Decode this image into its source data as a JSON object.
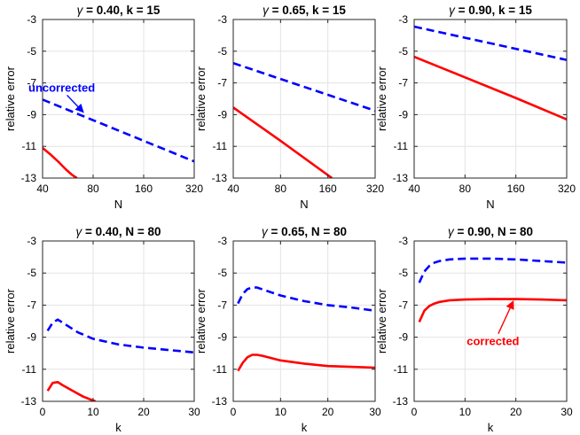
{
  "chart_data": [
    {
      "type": "line",
      "title_symbol": "γ",
      "title": " = 0.40, k = 15",
      "xlabel": "N",
      "ylabel": "relative error",
      "xscale": "log",
      "xlim": [
        40,
        320
      ],
      "ylim": [
        -13,
        -3
      ],
      "xticks": [
        40,
        80,
        160,
        320
      ],
      "xtick_labels": [
        "40",
        "80",
        "160",
        "320"
      ],
      "yticks": [
        -13,
        -11,
        -9,
        -7,
        -5,
        -3
      ],
      "ytick_labels": [
        "-13",
        "-11",
        "-9",
        "-7",
        "-5",
        "-3"
      ],
      "grid": true,
      "series": [
        {
          "color": "#0000ff",
          "dash": "dashed",
          "x": [
            40,
            80,
            160,
            320
          ],
          "y": [
            -8.05,
            -9.35,
            -10.65,
            -11.95
          ]
        },
        {
          "color": "#ff0000",
          "dash": "solid",
          "x": [
            40,
            45,
            50,
            55,
            60,
            64
          ],
          "y": [
            -11.1,
            -11.55,
            -12.0,
            -12.45,
            -12.8,
            -13.0
          ]
        }
      ],
      "annotations": [
        {
          "text": "uncorrected",
          "color": "#0000ff",
          "anchor_x": 70,
          "anchor_y": -8.85,
          "label_x": 52,
          "label_y": -7.55
        }
      ]
    },
    {
      "type": "line",
      "title_symbol": "γ",
      "title": " = 0.65, k = 15",
      "xlabel": "N",
      "ylabel": "relative error",
      "xscale": "log",
      "xlim": [
        40,
        320
      ],
      "ylim": [
        -13,
        -3
      ],
      "xticks": [
        40,
        80,
        160,
        320
      ],
      "xtick_labels": [
        "40",
        "80",
        "160",
        "320"
      ],
      "yticks": [
        -13,
        -11,
        -9,
        -7,
        -5,
        -3
      ],
      "ytick_labels": [
        "-13",
        "-11",
        "-9",
        "-7",
        "-5",
        "-3"
      ],
      "grid": true,
      "series": [
        {
          "color": "#0000ff",
          "dash": "dashed",
          "x": [
            40,
            80,
            160,
            320
          ],
          "y": [
            -5.75,
            -6.75,
            -7.75,
            -8.75
          ]
        },
        {
          "color": "#ff0000",
          "dash": "solid",
          "x": [
            40,
            80,
            170
          ],
          "y": [
            -8.55,
            -10.65,
            -13.0
          ]
        }
      ],
      "annotations": []
    },
    {
      "type": "line",
      "title_symbol": "γ",
      "title": " = 0.90, k = 15",
      "xlabel": "N",
      "ylabel": "relative error",
      "xscale": "log",
      "xlim": [
        40,
        320
      ],
      "ylim": [
        -13,
        -3
      ],
      "xticks": [
        40,
        80,
        160,
        320
      ],
      "xtick_labels": [
        "40",
        "80",
        "160",
        "320"
      ],
      "yticks": [
        -13,
        -11,
        -9,
        -7,
        -5,
        -3
      ],
      "ytick_labels": [
        "-13",
        "-11",
        "-9",
        "-7",
        "-5",
        "-3"
      ],
      "grid": true,
      "series": [
        {
          "color": "#0000ff",
          "dash": "dashed",
          "x": [
            40,
            80,
            160,
            320
          ],
          "y": [
            -3.45,
            -4.15,
            -4.85,
            -5.55
          ]
        },
        {
          "color": "#ff0000",
          "dash": "solid",
          "x": [
            40,
            80,
            160,
            320
          ],
          "y": [
            -5.35,
            -6.65,
            -7.95,
            -9.3
          ]
        }
      ],
      "annotations": []
    },
    {
      "type": "line",
      "title_symbol": "γ",
      "title": " = 0.40, N = 80",
      "xlabel": "k",
      "ylabel": "relative error",
      "xscale": "linear",
      "xlim": [
        0,
        30
      ],
      "ylim": [
        -13,
        -3
      ],
      "xticks": [
        0,
        10,
        20,
        30
      ],
      "xtick_labels": [
        "0",
        "10",
        "20",
        "30"
      ],
      "yticks": [
        -13,
        -11,
        -9,
        -7,
        -5,
        -3
      ],
      "ytick_labels": [
        "-13",
        "-11",
        "-9",
        "-7",
        "-5",
        "-3"
      ],
      "grid": true,
      "series": [
        {
          "color": "#0000ff",
          "dash": "dashed",
          "x": [
            1,
            2,
            3,
            5,
            7,
            10,
            15,
            20,
            25,
            30
          ],
          "y": [
            -8.6,
            -8.1,
            -7.9,
            -8.3,
            -8.7,
            -9.1,
            -9.45,
            -9.65,
            -9.8,
            -9.95
          ]
        },
        {
          "color": "#ff0000",
          "dash": "solid",
          "x": [
            1,
            2,
            3,
            4,
            6,
            8,
            10,
            10.5
          ],
          "y": [
            -12.35,
            -11.85,
            -11.8,
            -12.0,
            -12.35,
            -12.7,
            -12.95,
            -13.0
          ]
        }
      ],
      "annotations": []
    },
    {
      "type": "line",
      "title_symbol": "γ",
      "title": " = 0.65, N = 80",
      "xlabel": "k",
      "ylabel": "relative error",
      "xscale": "linear",
      "xlim": [
        0,
        30
      ],
      "ylim": [
        -13,
        -3
      ],
      "xticks": [
        0,
        10,
        20,
        30
      ],
      "xtick_labels": [
        "0",
        "10",
        "20",
        "30"
      ],
      "yticks": [
        -13,
        -11,
        -9,
        -7,
        -5,
        -3
      ],
      "ytick_labels": [
        "-13",
        "-11",
        "-9",
        "-7",
        "-5",
        "-3"
      ],
      "grid": true,
      "series": [
        {
          "color": "#0000ff",
          "dash": "dashed",
          "x": [
            1,
            2,
            3,
            4,
            5,
            6,
            8,
            10,
            15,
            20,
            25,
            30
          ],
          "y": [
            -6.9,
            -6.3,
            -6.0,
            -5.9,
            -5.9,
            -6.0,
            -6.2,
            -6.4,
            -6.75,
            -7.0,
            -7.15,
            -7.35
          ]
        },
        {
          "color": "#ff0000",
          "dash": "solid",
          "x": [
            1,
            2,
            3,
            4,
            5,
            6,
            8,
            10,
            15,
            20,
            25,
            30
          ],
          "y": [
            -11.1,
            -10.6,
            -10.25,
            -10.1,
            -10.1,
            -10.15,
            -10.3,
            -10.45,
            -10.65,
            -10.8,
            -10.85,
            -10.9
          ]
        }
      ],
      "annotations": []
    },
    {
      "type": "line",
      "title_symbol": "γ",
      "title": " = 0.90, N = 80",
      "xlabel": "k",
      "ylabel": "relative error",
      "xscale": "linear",
      "xlim": [
        0,
        30
      ],
      "ylim": [
        -13,
        -3
      ],
      "xticks": [
        0,
        10,
        20,
        30
      ],
      "xtick_labels": [
        "0",
        "10",
        "20",
        "30"
      ],
      "yticks": [
        -13,
        -11,
        -9,
        -7,
        -5,
        -3
      ],
      "ytick_labels": [
        "-13",
        "-11",
        "-9",
        "-7",
        "-5",
        "-3"
      ],
      "grid": true,
      "series": [
        {
          "color": "#0000ff",
          "dash": "dashed",
          "x": [
            1,
            2,
            3,
            4,
            5,
            7,
            10,
            15,
            20,
            25,
            30
          ],
          "y": [
            -5.6,
            -4.9,
            -4.55,
            -4.35,
            -4.25,
            -4.15,
            -4.1,
            -4.1,
            -4.15,
            -4.25,
            -4.35
          ]
        },
        {
          "color": "#ff0000",
          "dash": "solid",
          "x": [
            1,
            2,
            3,
            4,
            5,
            7,
            10,
            15,
            20,
            25,
            30
          ],
          "y": [
            -8.05,
            -7.35,
            -7.05,
            -6.9,
            -6.8,
            -6.7,
            -6.65,
            -6.62,
            -6.62,
            -6.65,
            -6.7
          ]
        }
      ],
      "annotations": [
        {
          "text": "corrected",
          "color": "#ff0000",
          "anchor_x": 19.5,
          "anchor_y": -6.75,
          "label_x": 15.5,
          "label_y": -9.5
        }
      ]
    }
  ]
}
